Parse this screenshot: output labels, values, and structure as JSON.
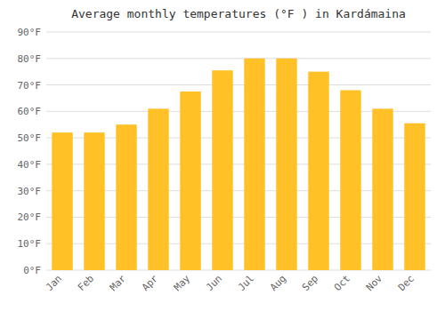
{
  "chart_data": {
    "type": "bar",
    "title": "Average monthly temperatures (°F ) in Kardámaina",
    "categories": [
      "Jan",
      "Feb",
      "Mar",
      "Apr",
      "May",
      "Jun",
      "Jul",
      "Aug",
      "Sep",
      "Oct",
      "Nov",
      "Dec"
    ],
    "values": [
      52,
      52,
      55,
      61,
      67.5,
      75.5,
      80,
      80,
      75,
      68,
      61,
      55.5
    ],
    "color": "#FFC125",
    "ylim": [
      0,
      90
    ],
    "yticks": [
      {
        "value": 0,
        "label": "0°F"
      },
      {
        "value": 10,
        "label": "10°F"
      },
      {
        "value": 20,
        "label": "20°F"
      },
      {
        "value": 30,
        "label": "30°F"
      },
      {
        "value": 40,
        "label": "40°F"
      },
      {
        "value": 50,
        "label": "50°F"
      },
      {
        "value": 60,
        "label": "60°F"
      },
      {
        "value": 70,
        "label": "70°F"
      },
      {
        "value": 80,
        "label": "80°F"
      },
      {
        "value": 90,
        "label": "90°F"
      }
    ],
    "grid": true
  }
}
